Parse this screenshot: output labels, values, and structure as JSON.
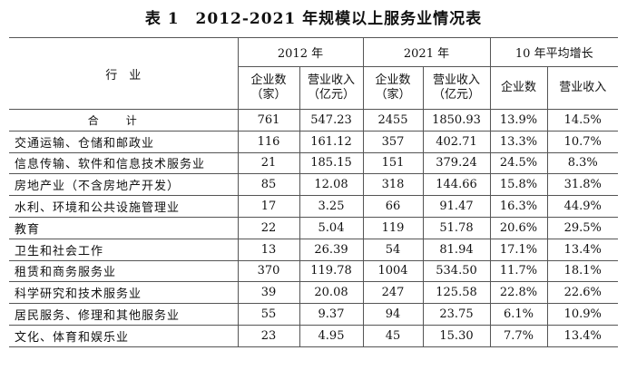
{
  "title": "表 1　2012-2021 年规模以上服务业情况表",
  "table": {
    "header": {
      "industry": "行　业",
      "groups": [
        "2012 年",
        "2021 年",
        "10 年平均增长"
      ],
      "sub": [
        "企业数\n（家）",
        "营业收入\n（亿元）",
        "企业数\n（家）",
        "营业收入\n（亿元）",
        "企业数",
        "营业收入"
      ]
    },
    "rows": [
      [
        "合计",
        "761",
        "547.23",
        "2455",
        "1850.93",
        "13.9%",
        "14.5%"
      ],
      [
        "交通运输、仓储和邮政业",
        "116",
        "161.12",
        "357",
        "402.71",
        "13.3%",
        "10.7%"
      ],
      [
        "信息传输、软件和信息技术服务业",
        "21",
        "185.15",
        "151",
        "379.24",
        "24.5%",
        "8.3%"
      ],
      [
        "房地产业（不含房地产开发）",
        "85",
        "12.08",
        "318",
        "144.66",
        "15.8%",
        "31.8%"
      ],
      [
        "水利、环境和公共设施管理业",
        "17",
        "3.25",
        "66",
        "91.47",
        "16.3%",
        "44.9%"
      ],
      [
        "教育",
        "22",
        "5.04",
        "119",
        "51.78",
        "20.6%",
        "29.5%"
      ],
      [
        "卫生和社会工作",
        "13",
        "26.39",
        "54",
        "81.94",
        "17.1%",
        "13.4%"
      ],
      [
        "租赁和商务服务业",
        "370",
        "119.78",
        "1004",
        "534.50",
        "11.7%",
        "18.1%"
      ],
      [
        "科学研究和技术服务业",
        "39",
        "20.08",
        "247",
        "125.58",
        "22.8%",
        "22.6%"
      ],
      [
        "居民服务、修理和其他服务业",
        "55",
        "9.37",
        "94",
        "23.75",
        "6.1%",
        "10.9%"
      ],
      [
        "文化、体育和娱乐业",
        "23",
        "4.95",
        "45",
        "15.30",
        "7.7%",
        "13.4%"
      ]
    ]
  }
}
